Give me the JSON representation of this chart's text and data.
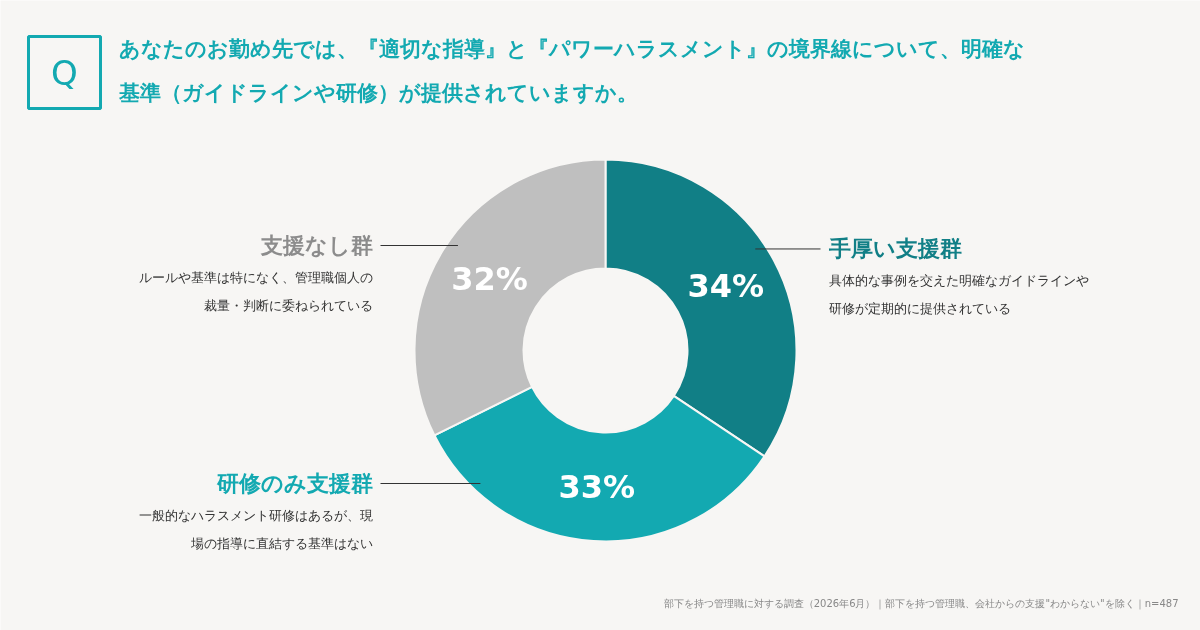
{
  "chart_data": {
    "type": "donut",
    "title": "あなたのお勤め先では、『適切な指導』と『パワーハラスメント』の境界線について、明確な基準（ガイドラインや研修）が提供されていますか。",
    "categories": [
      "手厚い支援群",
      "研修のみ支援群",
      "支援なし群"
    ],
    "values": [
      34,
      33,
      32
    ],
    "colors": [
      "#117f86",
      "#13a9b1",
      "#bfbfbf"
    ],
    "value_labels": [
      "34%",
      "33%",
      "32%"
    ],
    "annotations": [
      "Q",
      "具体的な事例を交えた明確なガイドラインや研修が定期的に提供されている",
      "一般的なハラスメント研修はあるが、現場の指導に直結する基準はない",
      "ルールや基準は特になく、管理職個人の裁量・判断に委ねられている",
      "部下を持つ管理職に対する調査（2026年6月）｜部下を持つ管理職、会社からの支援\"わからない\"を除く｜n=487"
    ]
  }
}
